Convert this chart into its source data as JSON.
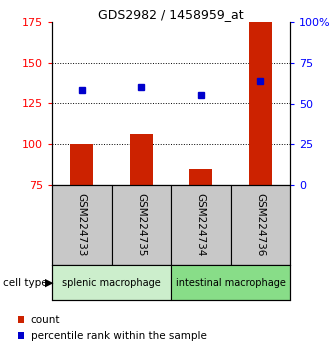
{
  "title": "GDS2982 / 1458959_at",
  "samples": [
    "GSM224733",
    "GSM224735",
    "GSM224734",
    "GSM224736"
  ],
  "red_values": [
    100,
    106,
    85,
    175
  ],
  "blue_values": [
    133,
    135,
    130,
    139
  ],
  "ylim_left": [
    75,
    175
  ],
  "yticks_left": [
    75,
    100,
    125,
    150,
    175
  ],
  "ylim_right": [
    0,
    100
  ],
  "yticks_right": [
    0,
    25,
    50,
    75,
    100
  ],
  "ytick_labels_right": [
    "0",
    "25",
    "50",
    "75",
    "100%"
  ],
  "bar_color": "#CC2200",
  "dot_color": "#0000CC",
  "groups": [
    {
      "label": "splenic macrophage",
      "indices": [
        0,
        1
      ],
      "color": "#cceecc"
    },
    {
      "label": "intestinal macrophage",
      "indices": [
        2,
        3
      ],
      "color": "#88dd88"
    }
  ],
  "cell_type_label": "cell type",
  "legend_red": "count",
  "legend_blue": "percentile rank within the sample",
  "sample_box_color": "#c8c8c8",
  "bar_bottom": 75
}
